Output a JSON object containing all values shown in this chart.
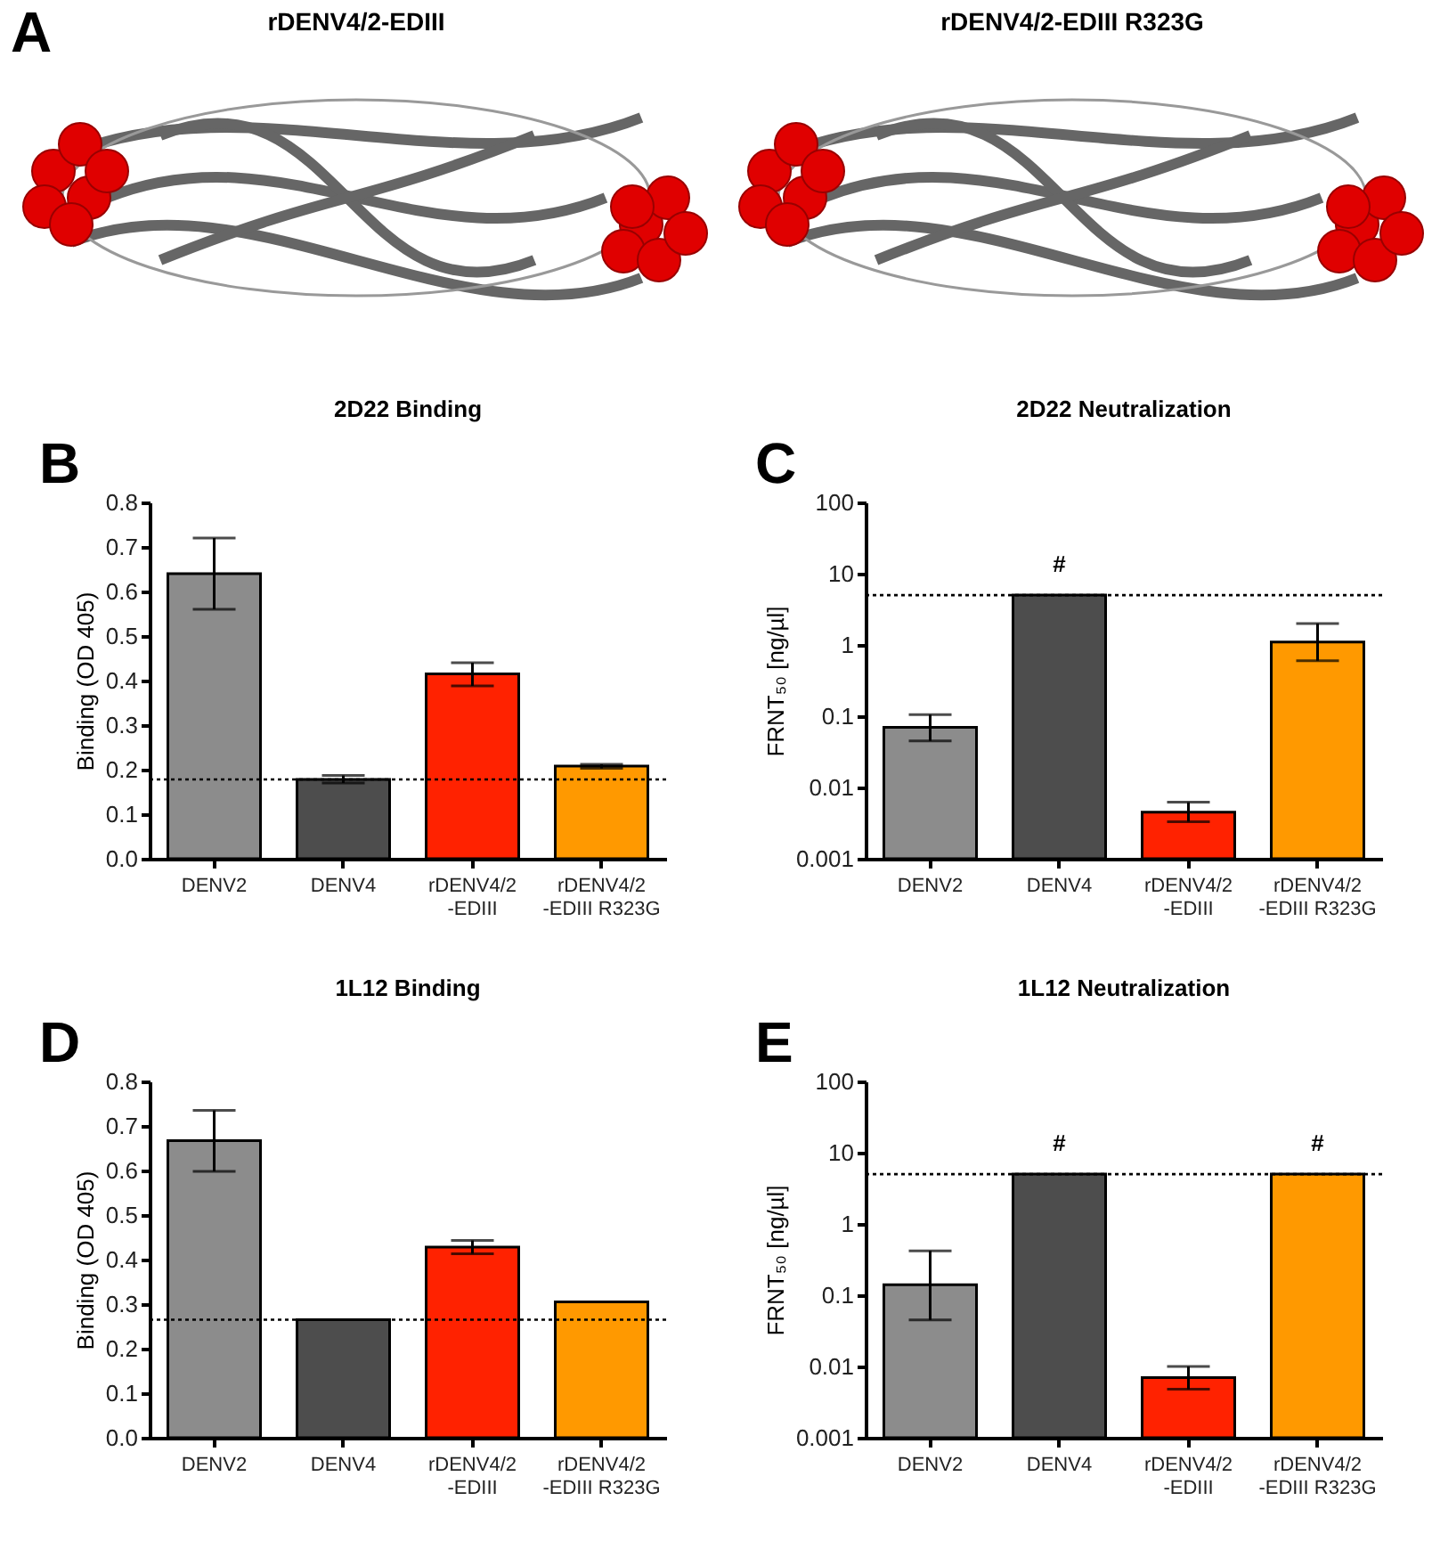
{
  "chart_data": [
    {
      "type": "other",
      "annotations": [
        "A",
        "rDENV4/2-EDIII",
        "rDENV4/2-EDIII R323G"
      ]
    },
    {
      "type": "bar",
      "title": "2D22 Binding",
      "ylabel": "Binding (OD 405)",
      "annotations": [
        "B"
      ],
      "categories": [
        "DENV2",
        "DENV4",
        "rDENV4/2\n-EDIII",
        "rDENV4/2\n-EDIII R323G"
      ],
      "values": [
        0.64,
        0.178,
        0.415,
        0.208
      ],
      "colors": [
        "#8c8c8c",
        "#4d4d4d",
        "#ff2200",
        "#ff9900"
      ],
      "errors": [
        [
          0.56,
          0.72
        ],
        [
          0.17,
          0.187
        ],
        [
          0.388,
          0.44
        ],
        [
          0.203,
          0.212
        ]
      ],
      "ylim": [
        0,
        0.8
      ],
      "yticks": [
        {
          "value": 0,
          "label": "0.0"
        },
        0.1,
        0.2,
        0.3,
        0.4,
        0.5,
        0.6,
        0.7,
        0.8
      ],
      "ref_lines": [
        {
          "axis": "y",
          "value": 0.178,
          "line_style": "dotted"
        }
      ]
    },
    {
      "type": "bar",
      "title": "2D22 Neutralization",
      "ylabel": "FRNT₅₀ [ng/µl]",
      "annotations": [
        "C",
        {
          "text": "#",
          "x": "DENV4",
          "y": 5
        }
      ],
      "categories": [
        "DENV2",
        "DENV4",
        "rDENV4/2\n-EDIII",
        "rDENV4/2\n-EDIII R323G"
      ],
      "values": [
        0.07,
        5,
        0.0045,
        1.1
      ],
      "colors": [
        "#8c8c8c",
        "#4d4d4d",
        "#ff2200",
        "#ff9900"
      ],
      "errors": [
        [
          0.045,
          0.105
        ],
        null,
        [
          0.0033,
          0.0062
        ],
        [
          0.6,
          2.0
        ]
      ],
      "log": true,
      "ylim": [
        0.001,
        100
      ],
      "yticks": [
        0.001,
        0.01,
        0.1,
        1,
        10,
        100
      ],
      "ref_lines": [
        {
          "axis": "y",
          "value": 5,
          "line_style": "dotted"
        }
      ]
    },
    {
      "type": "bar",
      "title": "1L12 Binding",
      "ylabel": "Binding (OD 405)",
      "annotations": [
        "D"
      ],
      "categories": [
        "DENV2",
        "DENV4",
        "rDENV4/2\n-EDIII",
        "rDENV4/2\n-EDIII R323G"
      ],
      "values": [
        0.667,
        0.265,
        0.428,
        0.305
      ],
      "colors": [
        "#8c8c8c",
        "#4d4d4d",
        "#ff2200",
        "#ff9900"
      ],
      "errors": [
        [
          0.598,
          0.735
        ],
        null,
        [
          0.413,
          0.443
        ],
        null
      ],
      "ylim": [
        0,
        0.8
      ],
      "yticks": [
        {
          "value": 0,
          "label": "0.0"
        },
        0.1,
        0.2,
        0.3,
        0.4,
        0.5,
        0.6,
        0.7,
        0.8
      ],
      "ref_lines": [
        {
          "axis": "y",
          "value": 0.265,
          "line_style": "dotted"
        }
      ]
    },
    {
      "type": "bar",
      "title": "1L12 Neutralization",
      "ylabel": "FRNT₅₀ [ng/µl]",
      "annotations": [
        "E",
        {
          "text": "#",
          "x": "DENV4",
          "y": 5
        },
        {
          "text": "#",
          "x": "rDENV4/2\n-EDIII R323G",
          "y": 5
        }
      ],
      "categories": [
        "DENV2",
        "DENV4",
        "rDENV4/2\n-EDIII",
        "rDENV4/2\n-EDIII R323G"
      ],
      "values": [
        0.14,
        5,
        0.007,
        5
      ],
      "colors": [
        "#8c8c8c",
        "#4d4d4d",
        "#ff2200",
        "#ff9900"
      ],
      "errors": [
        [
          0.045,
          0.42
        ],
        null,
        [
          0.0048,
          0.01
        ],
        null
      ],
      "log": true,
      "ylim": [
        0.001,
        100
      ],
      "yticks": [
        0.001,
        0.01,
        0.1,
        1,
        10,
        100
      ],
      "ref_lines": [
        {
          "axis": "y",
          "value": 5,
          "line_style": "dotted"
        }
      ]
    }
  ]
}
